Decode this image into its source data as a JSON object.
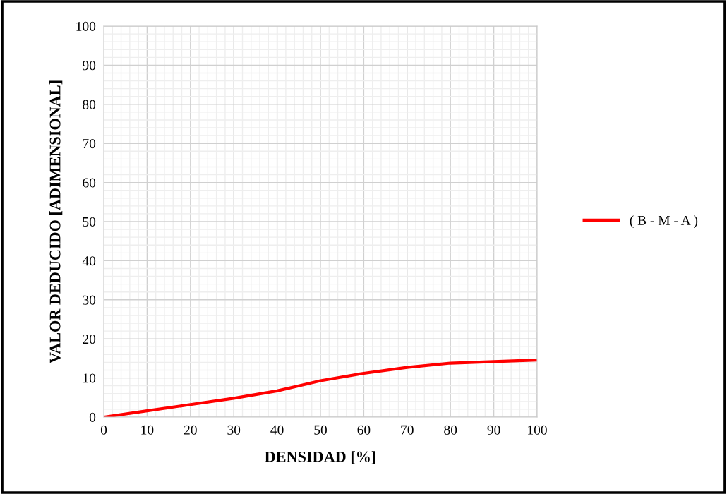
{
  "chart_data": {
    "type": "line",
    "xlabel": "DENSIDAD [%]",
    "ylabel": "VALOR DEDUCIDO [ADIMENSIONAL]",
    "x": [
      0,
      10,
      20,
      30,
      40,
      45,
      50,
      60,
      70,
      80,
      90,
      100
    ],
    "series": [
      {
        "name": "( B - M - A )",
        "color": "#ff0000",
        "values": [
          0,
          1.6,
          3.2,
          4.8,
          6.7,
          8.0,
          9.3,
          11.2,
          12.7,
          13.8,
          14.2,
          14.6
        ]
      }
    ],
    "xlim": [
      0,
      100
    ],
    "xticks": [
      0,
      10,
      20,
      30,
      40,
      50,
      60,
      70,
      80,
      90,
      100
    ],
    "ylim": [
      0,
      100
    ],
    "yticks": [
      0,
      10,
      20,
      30,
      40,
      50,
      60,
      70,
      80,
      90,
      100
    ],
    "grid": true,
    "legend": "right",
    "marker": "none",
    "line_style": "solid"
  }
}
